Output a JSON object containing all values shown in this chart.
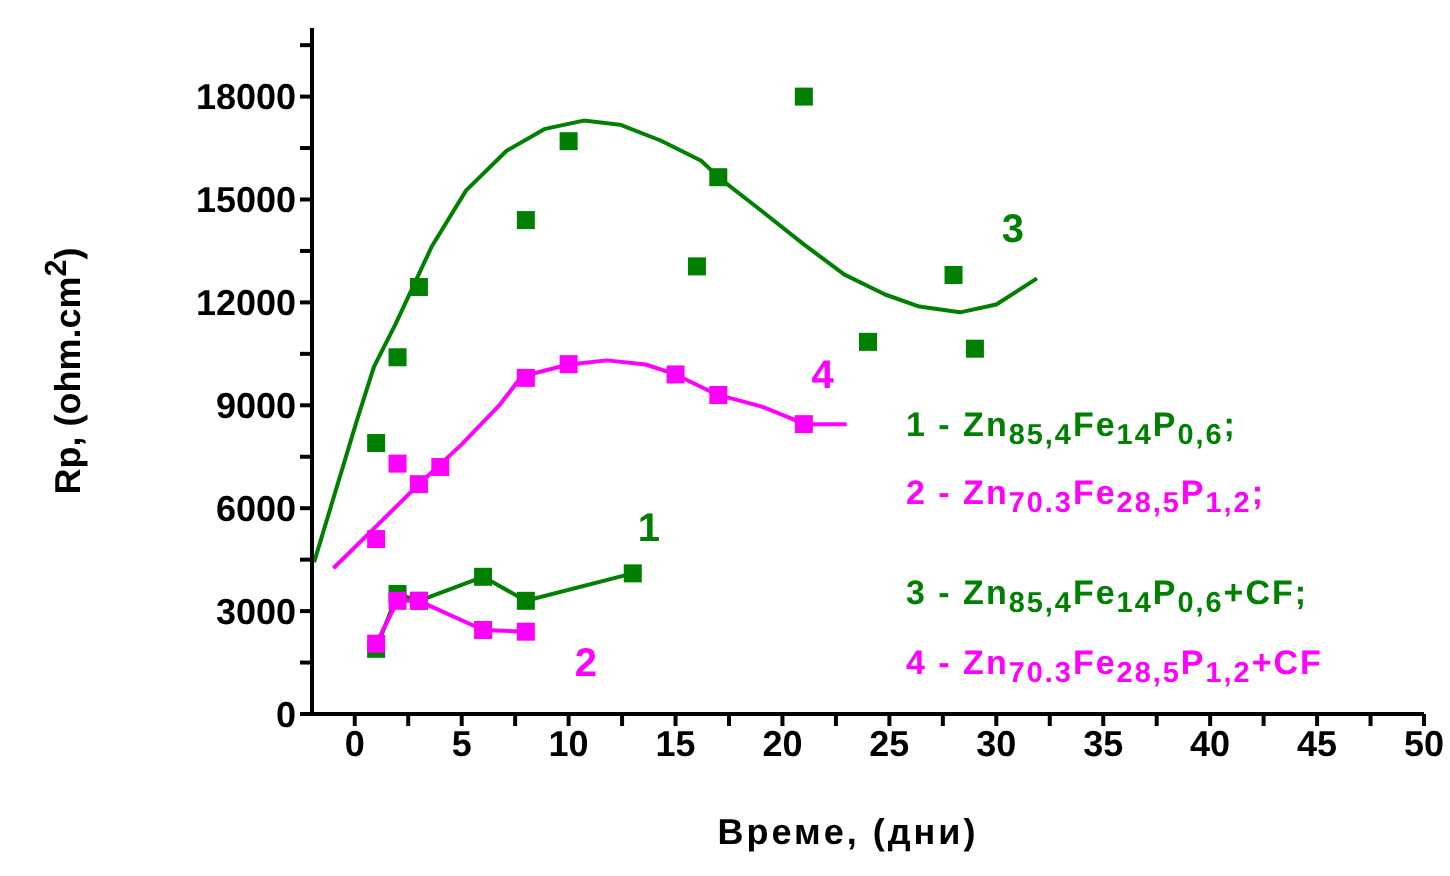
{
  "chart_data": {
    "type": "scatter",
    "xlabel": "Време, (дни)",
    "ylabel": "Rp, (ohm.cm$^{2}$)",
    "xlim": [
      -2,
      50
    ],
    "xticks": [
      0,
      {
        "value": 2.5,
        "label": null
      },
      5,
      {
        "value": 7.5,
        "label": null
      },
      10,
      {
        "value": 12.5,
        "label": null
      },
      15,
      {
        "value": 17.5,
        "label": null
      },
      20,
      {
        "value": 22.5,
        "label": null
      },
      25,
      {
        "value": 27.5,
        "label": null
      },
      30,
      {
        "value": 32.5,
        "label": null
      },
      35,
      {
        "value": 37.5,
        "label": null
      },
      40,
      {
        "value": 42.5,
        "label": null
      },
      45,
      {
        "value": 47.5,
        "label": null
      },
      50
    ],
    "ylim": [
      0,
      20000
    ],
    "yticks": [
      0,
      {
        "value": 1500,
        "label": null
      },
      3000,
      {
        "value": 4500,
        "label": null
      },
      6000,
      {
        "value": 7500,
        "label": null
      },
      9000,
      {
        "value": 10500,
        "label": null
      },
      12000,
      {
        "value": 13500,
        "label": null
      },
      15000,
      {
        "value": 16500,
        "label": null
      },
      18000,
      {
        "value": 19500,
        "label": null
      }
    ],
    "grid": false,
    "marker": "square",
    "line_style": "solid",
    "series": [
      {
        "name": "1",
        "type": "line",
        "color": "#008000",
        "x": [
          1,
          2,
          3,
          6,
          8,
          13
        ],
        "values": [
          1900,
          3500,
          3300,
          4000,
          3300,
          4100
        ]
      },
      {
        "name": "2",
        "type": "line",
        "color": "#ff00ff",
        "x": [
          1,
          2,
          3,
          6,
          8
        ],
        "values": [
          2050,
          3300,
          3300,
          2450,
          2400
        ]
      },
      {
        "name": "3",
        "color": "#008000",
        "x": [
          1,
          2,
          3,
          8,
          10,
          16,
          17,
          21,
          24,
          28,
          29
        ],
        "values": [
          7900,
          10400,
          12450,
          14400,
          16700,
          13050,
          15650,
          18000,
          10850,
          12800,
          10650
        ]
      },
      {
        "type": "line",
        "marker": "none",
        "color": "#008000",
        "x": [
          -1.9,
          0.1,
          0.9,
          1.9,
          3.6,
          5.2,
          7.1,
          8.9,
          10.7,
          12.4,
          14.3,
          16.2,
          17.1,
          19.0,
          21.0,
          22.9,
          24.8,
          26.4,
          28.3,
          30.0,
          31.9
        ],
        "values": [
          4430,
          8560,
          10130,
          11360,
          13630,
          15260,
          16420,
          17060,
          17300,
          17180,
          16720,
          16130,
          15600,
          14680,
          13690,
          12810,
          12230,
          11880,
          11710,
          11940,
          12700
        ]
      },
      {
        "name": "4",
        "color": "#ff00ff",
        "x": [
          1,
          2,
          3,
          4,
          8,
          10,
          15,
          17,
          21
        ],
        "values": [
          5100,
          7300,
          6700,
          7200,
          9800,
          10200,
          9900,
          9300,
          8450
        ]
      },
      {
        "type": "line",
        "marker": "none",
        "color": "#ff00ff",
        "x": [
          -1.0,
          1,
          3,
          5,
          6.8,
          7.8,
          10.0,
          11.8,
          13.6,
          15.0,
          16.9,
          19.0,
          20.4,
          21,
          23.0
        ],
        "values": [
          4250,
          5470,
          6700,
          7860,
          9030,
          9840,
          10190,
          10310,
          10190,
          9900,
          9320,
          8970,
          8620,
          8450,
          8450
        ]
      }
    ],
    "annotations": [
      "1 - Zn$_{85,4}$Fe$_{14}$P$_{0,6}$;",
      "2 - Zn$_{70.3}$Fe$_{28,5}$P$_{1,2}$;",
      "3 - Zn$_{85,4}$Fe$_{14}$P$_{0,6}$+CF;",
      "4 - Zn$_{70.3}$Fe$_{28,5}$P$_{1,2}$+CF"
    ]
  }
}
